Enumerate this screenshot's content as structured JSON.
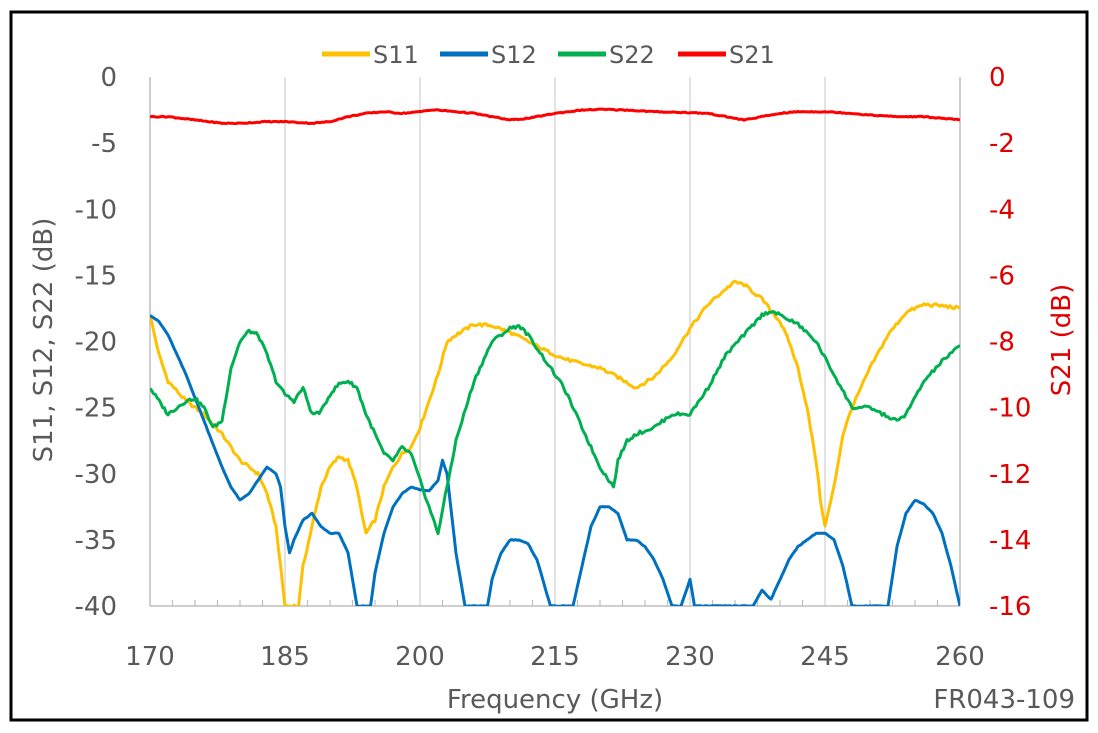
{
  "chart_data": {
    "type": "line",
    "figure_id": "FR043-109",
    "xlabel": "Frequency (GHz)",
    "ylabel_left": "S11, S12, S22 (dB)",
    "ylabel_right": "S21 (dB)",
    "xlim": [
      170,
      260
    ],
    "ylim_left": [
      -40,
      0
    ],
    "ylim_right": [
      -16,
      0
    ],
    "x_ticks": [
      170,
      185,
      200,
      215,
      230,
      245,
      260
    ],
    "y_ticks_left": [
      0,
      -5,
      -10,
      -15,
      -20,
      -25,
      -30,
      -35,
      -40
    ],
    "y_ticks_right": [
      0,
      -2,
      -4,
      -6,
      -8,
      -10,
      -12,
      -14,
      -16
    ],
    "grid": "vertical",
    "legend_position": "top",
    "series": [
      {
        "name": "S11",
        "axis": "left",
        "color": "#FFC000",
        "x": [
          170,
          171,
          172,
          174,
          176,
          178,
          180,
          182,
          183,
          184,
          184.5,
          185,
          186,
          186.5,
          187,
          188,
          189,
          190,
          191,
          192,
          193,
          193.5,
          194,
          195,
          196,
          197,
          198,
          199,
          200,
          201,
          202,
          203,
          204,
          206,
          208,
          210,
          212,
          214,
          216,
          218,
          220,
          222,
          224,
          226,
          228,
          230,
          232,
          234,
          235,
          236,
          238,
          240,
          241,
          242,
          243,
          244,
          244.5,
          245,
          246,
          247,
          248,
          250,
          252,
          254,
          256,
          258,
          260
        ],
        "values": [
          -18,
          -21,
          -23,
          -24.5,
          -25.5,
          -27,
          -29,
          -30,
          -31.5,
          -34,
          -37,
          -40,
          -40,
          -40,
          -37,
          -34,
          -31,
          -29.5,
          -28.7,
          -29,
          -31,
          -33,
          -34.5,
          -33.5,
          -31,
          -29.5,
          -28.5,
          -28,
          -26.5,
          -24.5,
          -22.5,
          -20,
          -19.5,
          -18.7,
          -18.8,
          -19.3,
          -20,
          -20.7,
          -21.3,
          -21.7,
          -22,
          -22.7,
          -23.5,
          -22.7,
          -21.2,
          -19,
          -17.2,
          -16,
          -15.5,
          -15.7,
          -16.8,
          -18.5,
          -20,
          -22,
          -25,
          -29,
          -32,
          -34,
          -31,
          -27,
          -25,
          -22,
          -19.5,
          -17.8,
          -17.2,
          -17.3,
          -17.5
        ]
      },
      {
        "name": "S12",
        "axis": "left",
        "color": "#0070C0",
        "x": [
          170,
          171,
          172,
          174,
          176,
          178,
          179,
          180,
          181,
          182,
          183,
          184,
          184.5,
          185,
          185.5,
          186,
          187,
          188,
          189,
          190,
          191,
          192,
          192.5,
          193,
          194.5,
          195,
          196,
          197,
          198,
          199,
          200,
          201,
          202,
          202.5,
          203,
          204,
          205,
          207.5,
          208,
          209,
          210,
          211,
          212,
          213,
          214.5,
          217,
          218,
          219,
          220,
          221,
          222,
          223,
          224,
          225,
          226,
          227,
          228,
          229,
          230,
          230.5,
          233,
          234,
          235,
          236,
          237,
          238,
          239,
          240,
          241,
          242,
          243,
          244,
          245,
          246,
          247,
          248,
          252,
          253,
          254,
          255,
          256,
          257,
          258,
          259,
          260
        ],
        "values": [
          -18,
          -18.5,
          -19.5,
          -22.5,
          -26,
          -29.5,
          -31,
          -32,
          -31.5,
          -30.5,
          -29.5,
          -30,
          -31,
          -34,
          -36,
          -35,
          -33.5,
          -33,
          -34,
          -34.5,
          -34.5,
          -36,
          -38,
          -40,
          -40,
          -37.5,
          -34.5,
          -32.5,
          -31.5,
          -31,
          -31.2,
          -31.3,
          -30.5,
          -29,
          -30,
          -36,
          -40,
          -40,
          -38,
          -36,
          -35,
          -35,
          -35.3,
          -36.5,
          -40,
          -40,
          -37,
          -34,
          -32.5,
          -32.5,
          -33,
          -35,
          -35,
          -35.5,
          -36.5,
          -38,
          -40,
          -40,
          -38,
          -40,
          -40,
          -40,
          -40,
          -40,
          -40,
          -38.8,
          -39.5,
          -38,
          -36.5,
          -35.5,
          -35,
          -34.5,
          -34.5,
          -35,
          -37,
          -40,
          -40,
          -35.5,
          -33,
          -32,
          -32.3,
          -33,
          -34.5,
          -37,
          -40
        ]
      },
      {
        "name": "S22",
        "axis": "left",
        "color": "#00B050",
        "x": [
          170,
          171,
          172,
          173,
          174,
          175,
          176,
          177,
          178,
          179,
          180,
          181,
          182,
          183,
          184,
          185,
          186,
          187,
          188,
          189,
          190,
          191,
          192,
          193,
          194,
          195,
          196,
          197,
          198,
          199,
          200,
          201,
          202,
          203,
          204,
          206,
          208,
          210,
          211,
          212,
          214,
          216,
          218,
          219,
          220,
          221,
          221.5,
          222,
          223,
          224,
          226,
          228,
          230,
          232,
          234,
          236,
          238,
          239,
          240,
          242,
          244,
          246,
          248,
          249,
          250,
          252,
          253,
          254,
          256,
          258,
          260
        ],
        "values": [
          -23.5,
          -24.5,
          -25.5,
          -25,
          -24.5,
          -24.3,
          -25,
          -26.5,
          -26,
          -22,
          -20,
          -19.2,
          -19.5,
          -21,
          -23,
          -24,
          -24.5,
          -23.5,
          -25.5,
          -25.3,
          -24,
          -23.2,
          -23,
          -23.5,
          -25.5,
          -27,
          -28.5,
          -29,
          -28,
          -28.5,
          -30.5,
          -32.5,
          -34.5,
          -31,
          -27.5,
          -23,
          -20,
          -19,
          -18.8,
          -19.5,
          -21.5,
          -23.5,
          -26.5,
          -28,
          -29.5,
          -30.5,
          -31,
          -29,
          -27.5,
          -27,
          -26.5,
          -25.5,
          -25.5,
          -23.5,
          -21,
          -19.5,
          -18,
          -17.7,
          -18,
          -18.7,
          -20,
          -22.5,
          -25,
          -25,
          -25,
          -25.7,
          -26,
          -25.5,
          -23,
          -21.5,
          -20.3
        ]
      },
      {
        "name": "S21",
        "axis": "right",
        "color": "#FF0000",
        "x": [
          170,
          172,
          175,
          178,
          180,
          183,
          185,
          188,
          190,
          192,
          194,
          196,
          198,
          200,
          201,
          202,
          204,
          206,
          208,
          210,
          212,
          215,
          218,
          220,
          223,
          226,
          229,
          232,
          235,
          236,
          238,
          240,
          242,
          245,
          248,
          250,
          253,
          256,
          258,
          260
        ],
        "values": [
          -1.2,
          -1.2,
          -1.3,
          -1.4,
          -1.4,
          -1.35,
          -1.35,
          -1.4,
          -1.35,
          -1.2,
          -1.1,
          -1.05,
          -1.1,
          -1.05,
          -1.0,
          -1.0,
          -1.05,
          -1.1,
          -1.2,
          -1.3,
          -1.25,
          -1.1,
          -1.0,
          -0.98,
          -1.0,
          -1.05,
          -1.07,
          -1.1,
          -1.25,
          -1.3,
          -1.2,
          -1.1,
          -1.05,
          -1.05,
          -1.1,
          -1.15,
          -1.2,
          -1.2,
          -1.25,
          -1.3
        ]
      }
    ]
  }
}
